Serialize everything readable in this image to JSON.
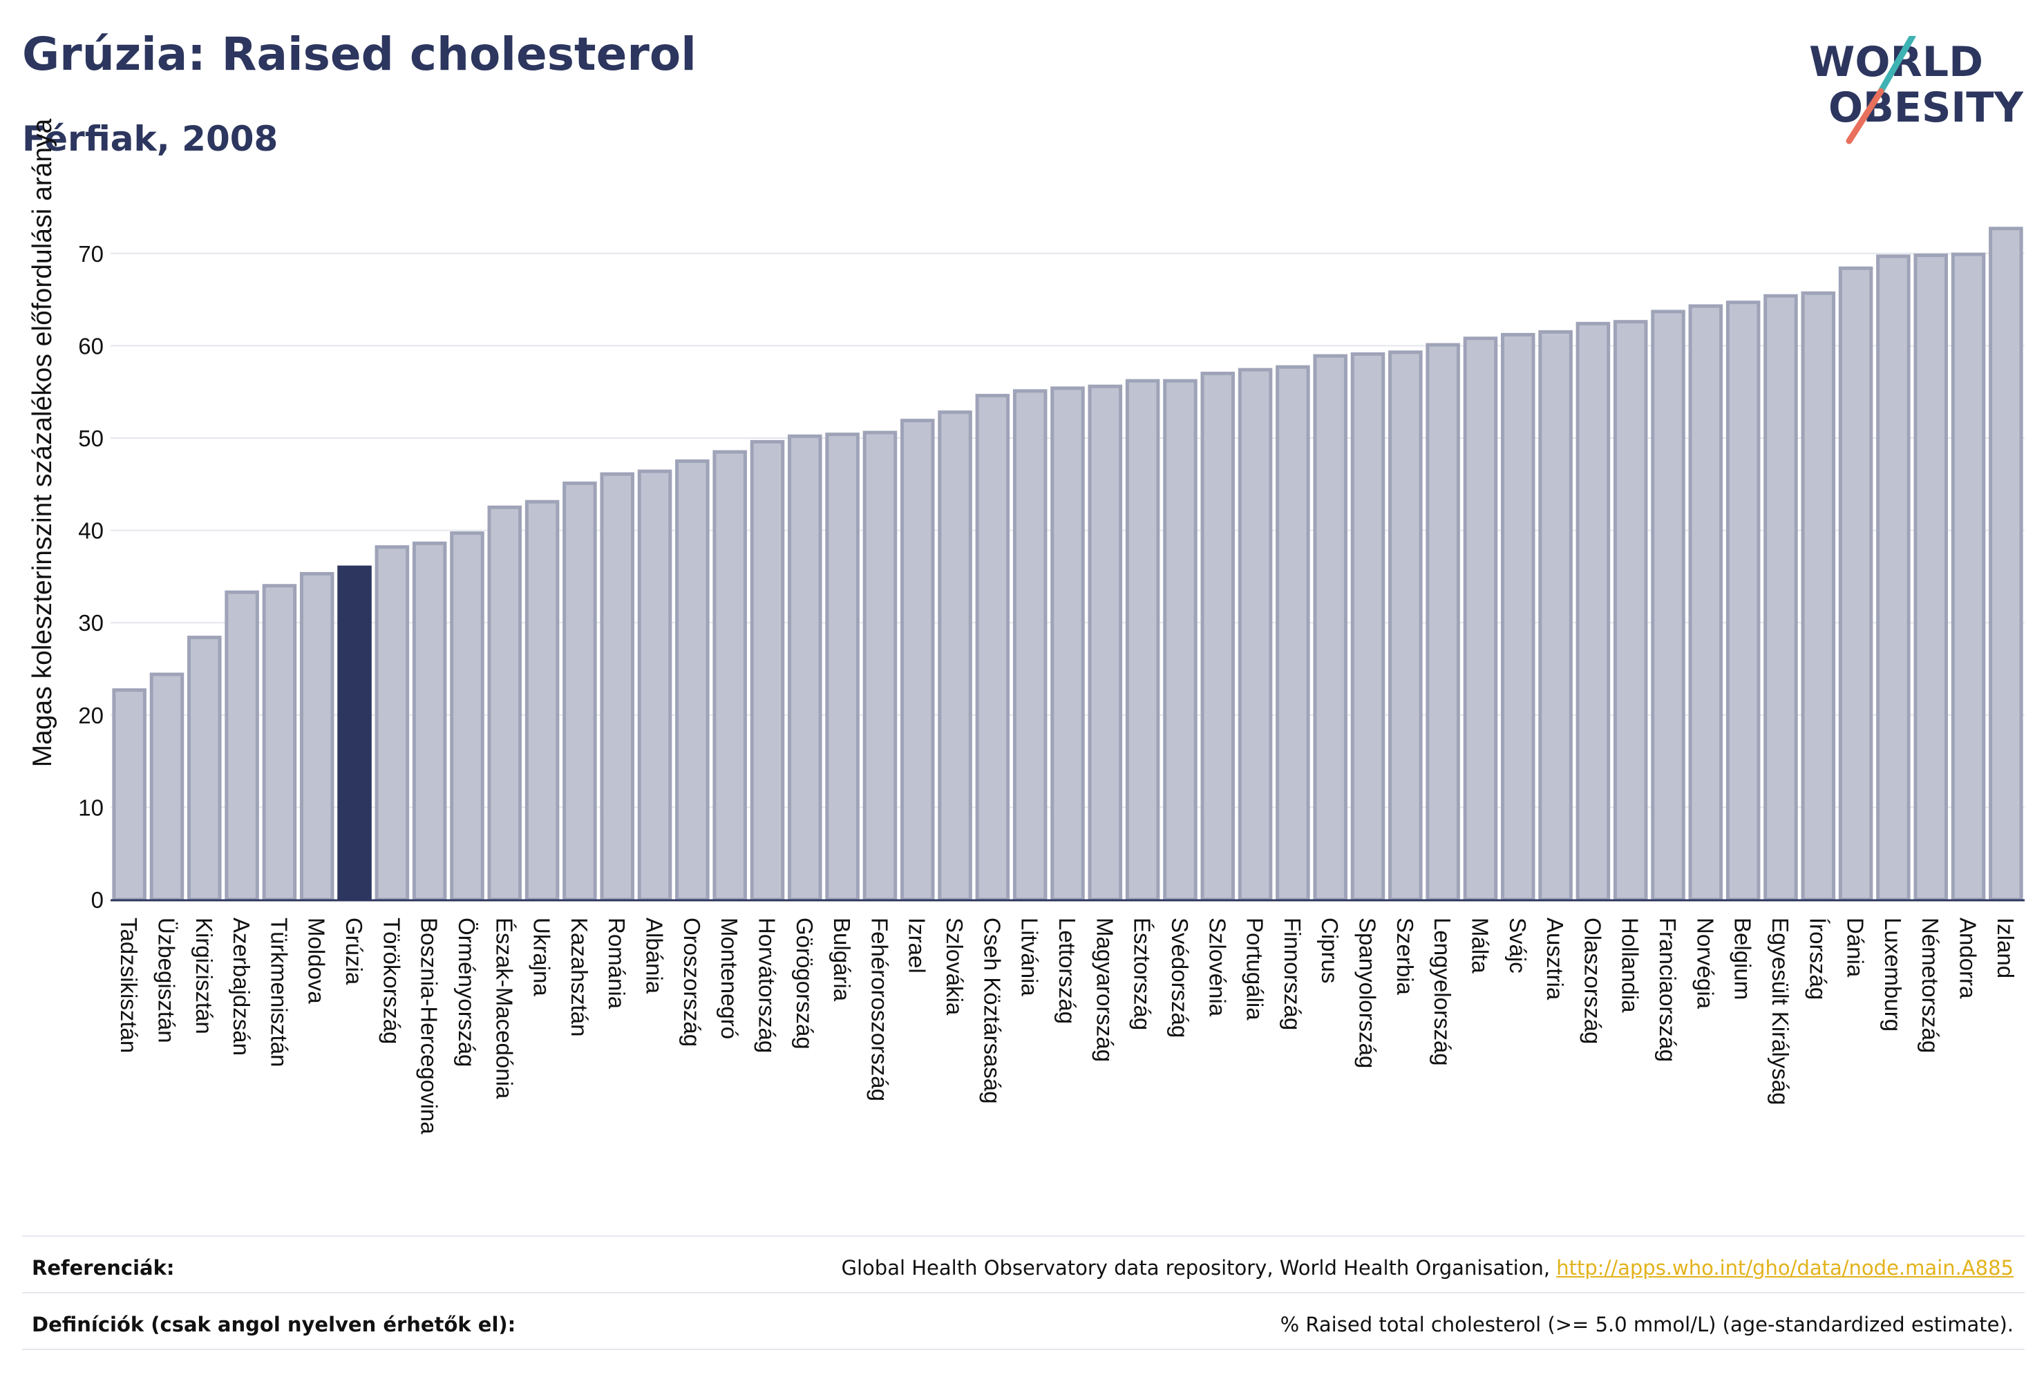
{
  "title": "Grúzia: Raised cholesterol",
  "subtitle": "Férfiak, 2008",
  "logo": {
    "line1": "WORLD",
    "line2": "OBESITY"
  },
  "colors": {
    "bar": "#bfc2d0",
    "bar_edge": "#9ea3b8",
    "highlight": "#2c365e",
    "text": "#2c365e",
    "link": "#e3b21c",
    "slash_teal": "#3fb3b4",
    "slash_red": "#e8705c"
  },
  "chart_data": {
    "type": "bar",
    "ylabel": "Magas koleszterinszint százalékos előfordulási aránya",
    "ylim": [
      0,
      75
    ],
    "yticks": [
      0,
      10,
      20,
      30,
      40,
      50,
      60,
      70
    ],
    "grid": true,
    "highlight": "Grúzia",
    "categories": [
      "Tadzsikisztán",
      "Üzbegisztán",
      "Kirgizisztán",
      "Azerbajdzsán",
      "Türkmenisztán",
      "Moldova",
      "Grúzia",
      "Törökország",
      "Bosznia-Hercegovina",
      "Örményország",
      "Észak-Macedónia",
      "Ukrajna",
      "Kazahsztán",
      "Románia",
      "Albánia",
      "Oroszország",
      "Montenegró",
      "Horvátország",
      "Görögország",
      "Bulgária",
      "Fehéroroszország",
      "Izrael",
      "Szlovákia",
      "Cseh Köztársaság",
      "Litvánia",
      "Lettország",
      "Magyarország",
      "Észtország",
      "Svédország",
      "Szlovénia",
      "Portugália",
      "Finnország",
      "Ciprus",
      "Spanyolország",
      "Szerbia",
      "Lengyelország",
      "Málta",
      "Svájc",
      "Ausztria",
      "Olaszország",
      "Hollandia",
      "Franciaország",
      "Norvégia",
      "Belgium",
      "Egyesült Királyság",
      "Írország",
      "Dánia",
      "Luxemburg",
      "Németország",
      "Andorra",
      "Izland"
    ],
    "values": [
      22.7,
      24.4,
      28.4,
      33.3,
      34.0,
      35.3,
      36.0,
      38.2,
      38.6,
      39.7,
      42.5,
      43.1,
      45.1,
      46.1,
      46.4,
      47.5,
      48.5,
      49.6,
      50.2,
      50.4,
      50.6,
      51.9,
      52.8,
      54.6,
      55.1,
      55.4,
      55.6,
      56.2,
      56.2,
      57.0,
      57.4,
      57.7,
      58.9,
      59.1,
      59.3,
      60.1,
      60.8,
      61.2,
      61.5,
      62.4,
      62.6,
      63.7,
      64.3,
      64.7,
      65.4,
      65.7,
      68.4,
      69.7,
      69.8,
      69.9,
      72.7
    ]
  },
  "footer": {
    "references_label": "Referenciák:",
    "references_text": "Global Health Observatory data repository, World Health Organisation, ",
    "references_link": "http://apps.who.int/gho/data/node.main.A885",
    "definitions_label": "Definíciók (csak angol nyelven érhetők el):",
    "definitions_text": "% Raised total cholesterol (>= 5.0 mmol/L) (age-standardized estimate)."
  }
}
